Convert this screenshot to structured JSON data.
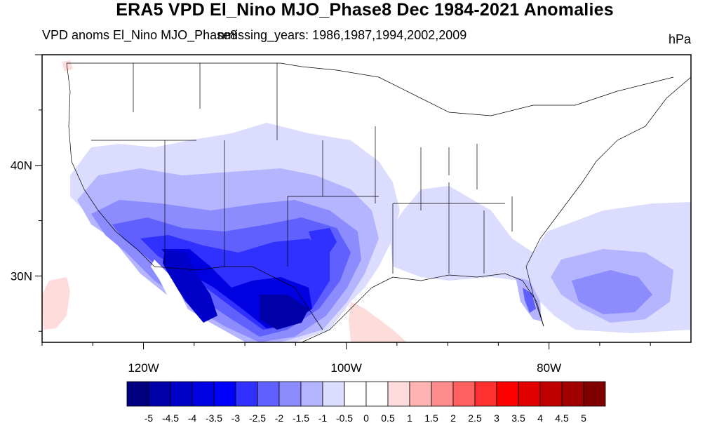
{
  "title": "ERA5 VPD El_Nino MJO_Phase8 Dec 1984-2021 Anomalies",
  "subtitle_left": "VPD anoms El_Nino MJO_Phase8",
  "subtitle_overlap": "nmissing_years: 1986,1987,1994,2002,2009",
  "units": "hPa",
  "map": {
    "lon_range": [
      -130,
      -66
    ],
    "lat_range": [
      24,
      50
    ],
    "x_ticks": [
      {
        "lon": -120,
        "label": "120W"
      },
      {
        "lon": -100,
        "label": "100W"
      },
      {
        "lon": -80,
        "label": "80W"
      }
    ],
    "y_ticks": [
      {
        "lat": 40,
        "label": "40N"
      },
      {
        "lat": 30,
        "label": "30N"
      }
    ]
  },
  "colorbar": {
    "labels": [
      "-5",
      "-4.5",
      "-4",
      "-3.5",
      "-3",
      "-2.5",
      "-2",
      "-1.5",
      "-1",
      "-0.5",
      "0",
      "0.5",
      "1",
      "1.5",
      "2",
      "2.5",
      "3",
      "3.5",
      "4",
      "4.5",
      "5"
    ],
    "colors": [
      "#000080",
      "#0000a8",
      "#0000c8",
      "#0000e0",
      "#0000ff",
      "#3030ff",
      "#6060ff",
      "#8c8cff",
      "#b4b4ff",
      "#dcdcff",
      "#ffffff",
      "#ffffff",
      "#ffdcdc",
      "#ffb4b4",
      "#ff8c8c",
      "#ff6060",
      "#ff3030",
      "#ff0000",
      "#e00000",
      "#c00000",
      "#a00000",
      "#800000"
    ]
  }
}
